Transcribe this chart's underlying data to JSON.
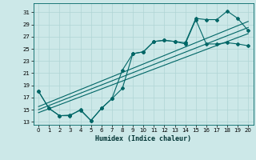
{
  "bg_color": "#cce8e8",
  "grid_color": "#b0d4d4",
  "line_color": "#006666",
  "xlabel": "Humidex (Indice chaleur)",
  "ylabel_ticks": [
    13,
    15,
    17,
    19,
    21,
    23,
    25,
    27,
    29,
    31
  ],
  "xlabel_ticks": [
    0,
    1,
    2,
    3,
    4,
    5,
    6,
    7,
    8,
    9,
    10,
    11,
    12,
    13,
    14,
    15,
    16,
    17,
    18,
    19,
    20
  ],
  "xlim": [
    -0.5,
    20.5
  ],
  "ylim": [
    12.5,
    32.5
  ],
  "series": {
    "line1_x": [
      0,
      1,
      2,
      3,
      4,
      5,
      6,
      7,
      8,
      9,
      10,
      11,
      12,
      13,
      14,
      15,
      16,
      17,
      18,
      19,
      20
    ],
    "line1_y": [
      18.0,
      15.2,
      14.0,
      14.0,
      15.0,
      13.2,
      15.2,
      16.8,
      21.5,
      24.2,
      24.5,
      26.2,
      26.4,
      26.2,
      26.0,
      30.0,
      29.8,
      29.8,
      31.2,
      30.0,
      28.0
    ],
    "line2_x": [
      0,
      1,
      2,
      3,
      4,
      5,
      6,
      7,
      8,
      9,
      10,
      11,
      12,
      13,
      14,
      15,
      16,
      17,
      18,
      19,
      20
    ],
    "line2_y": [
      18.0,
      15.2,
      14.0,
      14.1,
      14.9,
      13.2,
      15.2,
      16.8,
      18.5,
      24.2,
      24.5,
      26.2,
      26.4,
      26.2,
      25.8,
      29.8,
      25.8,
      25.8,
      26.0,
      25.8,
      25.5
    ],
    "line3_x": [
      0,
      20
    ],
    "line3_y": [
      15.0,
      28.5
    ],
    "line4_x": [
      0,
      20
    ],
    "line4_y": [
      14.5,
      27.5
    ],
    "line5_x": [
      0,
      20
    ],
    "line5_y": [
      15.5,
      29.5
    ]
  }
}
